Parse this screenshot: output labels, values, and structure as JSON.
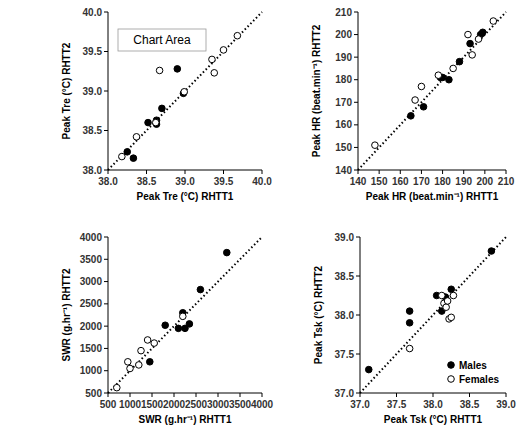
{
  "chart_data": [
    {
      "type": "scatter",
      "x_label": "Peak Tre (°C) RHTT1",
      "y_label": "Peak Tre (°C) RHTT2",
      "annotation": "Chart Area",
      "xlim": [
        38,
        40
      ],
      "ylim": [
        38,
        40
      ],
      "xticks": [
        {
          "value": 38,
          "label": "38.0"
        },
        {
          "value": 38.5,
          "label": "38.5"
        },
        {
          "value": 39,
          "label": "39.0"
        },
        {
          "value": 39.5,
          "label": "39.5"
        },
        {
          "value": 40,
          "label": "40.0"
        }
      ],
      "yticks": [
        {
          "value": 38,
          "label": "38.0"
        },
        {
          "value": 38.5,
          "label": "38.5"
        },
        {
          "value": 39,
          "label": "39.0"
        },
        {
          "value": 39.5,
          "label": "39.5"
        },
        {
          "value": 40,
          "label": "40.0"
        }
      ],
      "series": [
        {
          "color": "#000000",
          "marker": "filled",
          "x": [
            38.25,
            38.33,
            38.52,
            38.63,
            38.63,
            38.7,
            38.9,
            38.98
          ],
          "values": [
            38.23,
            38.15,
            38.6,
            38.58,
            38.63,
            38.78,
            39.28,
            38.97
          ]
        },
        {
          "color": "#000000",
          "marker": "open",
          "x": [
            38.18,
            38.37,
            38.62,
            38.67,
            38.99,
            39.35,
            39.38,
            39.5,
            39.68
          ],
          "values": [
            38.17,
            38.42,
            38.6,
            39.26,
            38.99,
            39.4,
            39.23,
            39.52,
            39.7
          ]
        }
      ]
    },
    {
      "type": "scatter",
      "x_label": "Peak HR (beat.min⁻¹) RHTT1",
      "y_label": "Peak HR (beat.min⁻¹) RHTT2",
      "xlim": [
        140,
        210
      ],
      "ylim": [
        140,
        210
      ],
      "xticks": [
        140,
        150,
        160,
        170,
        180,
        190,
        200,
        210
      ],
      "yticks": [
        140,
        150,
        160,
        170,
        180,
        190,
        200,
        210
      ],
      "series": [
        {
          "color": "#000000",
          "marker": "filled",
          "x": [
            165,
            171,
            179,
            180,
            183,
            188,
            193,
            198,
            199
          ],
          "values": [
            164,
            168,
            181,
            181,
            180,
            188,
            196,
            200,
            201
          ]
        },
        {
          "color": "#000000",
          "marker": "open",
          "x": [
            148,
            167,
            170,
            178,
            185,
            192,
            194,
            197,
            204
          ],
          "values": [
            151,
            171,
            177,
            182,
            185,
            200,
            191,
            198,
            206
          ]
        }
      ]
    },
    {
      "type": "scatter",
      "x_label": "SWR (g.hr⁻¹) RHTT1",
      "y_label": "SWR (g.hr⁻¹) RHTT2",
      "xlim": [
        500,
        4000
      ],
      "ylim": [
        500,
        4000
      ],
      "xticks": [
        500,
        1000,
        1500,
        2000,
        2500,
        3000,
        3500,
        4000
      ],
      "yticks": [
        500,
        1000,
        1500,
        2000,
        2500,
        3000,
        3500,
        4000
      ],
      "series": [
        {
          "color": "#000000",
          "marker": "filled",
          "x": [
            1450,
            1800,
            2100,
            2200,
            2250,
            2350,
            2600,
            3200
          ],
          "values": [
            1200,
            2020,
            1950,
            2300,
            1950,
            2050,
            2820,
            3650
          ]
        },
        {
          "color": "#000000",
          "marker": "open",
          "x": [
            700,
            950,
            1000,
            1200,
            1250,
            1400,
            1550,
            2200
          ],
          "values": [
            620,
            1200,
            1050,
            1130,
            1450,
            1690,
            1620,
            2220
          ]
        }
      ]
    },
    {
      "type": "scatter",
      "x_label": "Peak Tsk (°C) RHTT1",
      "y_label": "Peak Tsk (°C) RHTT2",
      "legend": "lower right",
      "xlim": [
        37,
        39
      ],
      "ylim": [
        37,
        39
      ],
      "xticks": [
        {
          "value": 37,
          "label": "37.0"
        },
        {
          "value": 37.5,
          "label": "37.5"
        },
        {
          "value": 38,
          "label": "38.0"
        },
        {
          "value": 38.5,
          "label": "38.5"
        },
        {
          "value": 39,
          "label": "39.0"
        }
      ],
      "yticks": [
        {
          "value": 37,
          "label": "37.0"
        },
        {
          "value": 37.5,
          "label": "37.5"
        },
        {
          "value": 38,
          "label": "38.0"
        },
        {
          "value": 38.5,
          "label": "38.5"
        },
        {
          "value": 39,
          "label": "39.0"
        }
      ],
      "series": [
        {
          "name": "Males",
          "color": "#000000",
          "marker": "filled",
          "x": [
            37.12,
            37.68,
            37.68,
            38.05,
            38.12,
            38.17,
            38.25,
            38.8
          ],
          "values": [
            37.3,
            38.05,
            37.9,
            38.25,
            38.05,
            38.23,
            38.33,
            38.82
          ]
        },
        {
          "name": "Females",
          "color": "#000000",
          "marker": "open",
          "x": [
            37.68,
            38.12,
            38.15,
            38.18,
            38.2,
            38.22,
            38.25,
            38.28
          ],
          "values": [
            37.57,
            38.25,
            38.15,
            38.1,
            38.18,
            37.95,
            37.97,
            38.25
          ]
        }
      ]
    }
  ]
}
